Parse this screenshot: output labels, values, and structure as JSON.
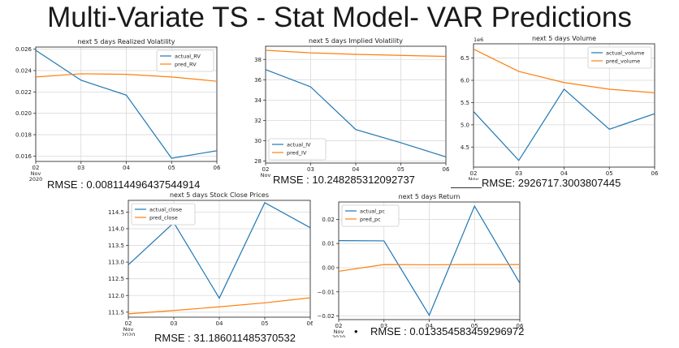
{
  "slide": {
    "title": "Multi-Variate TS - Stat Model- VAR Predictions"
  },
  "colors": {
    "actual": "#1f77b4",
    "pred": "#ff7f0e"
  },
  "rmse": {
    "rv": "RMSE : 0.008114496437544914",
    "iv": "RMSE : 10.248285312092737",
    "volume": "RMSE: 2926717.3003807445",
    "close": "RMSE : 31.186011485370532",
    "return_bullet": "•",
    "return": "RMSE : 0.013354583459296972"
  },
  "chart_data": [
    {
      "id": "rv",
      "type": "line",
      "title": "next 5 days Realized Volatility",
      "x": [
        "02",
        "03",
        "04",
        "05",
        "06"
      ],
      "x_sub": [
        "Nov",
        "2020"
      ],
      "ylim": [
        0.0155,
        0.0262
      ],
      "yticks": [
        0.016,
        0.018,
        0.02,
        0.022,
        0.024,
        0.026
      ],
      "ytick_labels": [
        "0.016",
        "0.018",
        "0.020",
        "0.022",
        "0.024",
        "0.026"
      ],
      "legend_loc": "top-right",
      "grid": true,
      "series": [
        {
          "name": "actual_RV",
          "color": "#1f77b4",
          "values": [
            0.0259,
            0.0231,
            0.0217,
            0.0158,
            0.0165
          ]
        },
        {
          "name": "pred_RV",
          "color": "#ff7f0e",
          "values": [
            0.0234,
            0.0237,
            0.02365,
            0.0234,
            0.023
          ]
        }
      ]
    },
    {
      "id": "iv",
      "type": "line",
      "title": "next 5 days Implied Volatility",
      "x": [
        "02",
        "03",
        "04",
        "05",
        "06"
      ],
      "x_sub": [
        "Nov",
        "2020"
      ],
      "ylim": [
        27.8,
        39.3
      ],
      "yticks": [
        28,
        30,
        32,
        34,
        36,
        38
      ],
      "ytick_labels": [
        "28",
        "30",
        "32",
        "34",
        "36",
        "38"
      ],
      "legend_loc": "bottom-left",
      "grid": true,
      "series": [
        {
          "name": "actual_IV",
          "color": "#1f77b4",
          "values": [
            37.0,
            35.3,
            31.1,
            29.8,
            28.4
          ]
        },
        {
          "name": "pred_IV",
          "color": "#ff7f0e",
          "values": [
            38.9,
            38.65,
            38.5,
            38.4,
            38.3
          ]
        }
      ]
    },
    {
      "id": "volume",
      "type": "line",
      "title": "next 5 days Volume",
      "x": [
        "02",
        "03",
        "04",
        "05",
        "06"
      ],
      "x_sub": [
        "Nov",
        "2020"
      ],
      "ylim": [
        4.05,
        6.82
      ],
      "yticks": [
        4.5,
        5.0,
        5.5,
        6.0,
        6.5
      ],
      "ytick_labels": [
        "4.5",
        "5.0",
        "5.5",
        "6.0",
        "6.5"
      ],
      "offset_label": "1e6",
      "legend_loc": "top-right",
      "grid": true,
      "series": [
        {
          "name": "actual_volume",
          "color": "#1f77b4",
          "values": [
            5.3,
            4.2,
            5.8,
            4.9,
            5.25
          ]
        },
        {
          "name": "pred_volume",
          "color": "#ff7f0e",
          "values": [
            6.7,
            6.2,
            5.95,
            5.8,
            5.72
          ]
        }
      ]
    },
    {
      "id": "close",
      "type": "line",
      "title": "next 5 days Stock Close Prices",
      "x": [
        "02",
        "03",
        "04",
        "05",
        "06"
      ],
      "x_sub": [
        "Nov",
        "2020"
      ],
      "ylim": [
        111.35,
        114.85
      ],
      "yticks": [
        111.5,
        112.0,
        112.5,
        113.0,
        113.5,
        114.0,
        114.5
      ],
      "ytick_labels": [
        "111.5",
        "112.0",
        "112.5",
        "113.0",
        "113.5",
        "114.0",
        "114.5"
      ],
      "legend_loc": "top-left",
      "grid": true,
      "series": [
        {
          "name": "actual_close",
          "color": "#1f77b4",
          "values": [
            112.92,
            114.18,
            111.92,
            114.78,
            114.03
          ]
        },
        {
          "name": "pred_close",
          "color": "#ff7f0e",
          "values": [
            111.45,
            111.55,
            111.66,
            111.78,
            111.93
          ]
        }
      ]
    },
    {
      "id": "return",
      "type": "line",
      "title": "next 5 days Return",
      "x": [
        "02",
        "03",
        "04",
        "05",
        "06"
      ],
      "x_sub": [
        "Nov",
        "2020"
      ],
      "ylim": [
        -0.0215,
        0.0272
      ],
      "yticks": [
        -0.02,
        -0.01,
        0.0,
        0.01,
        0.02
      ],
      "ytick_labels": [
        "−0.02",
        "−0.01",
        "0.00",
        "0.01",
        "0.02"
      ],
      "legend_loc": "top-left",
      "grid": true,
      "series": [
        {
          "name": "actual_pc",
          "color": "#1f77b4",
          "values": [
            0.0112,
            0.0111,
            -0.0197,
            0.0255,
            -0.0064
          ]
        },
        {
          "name": "pred_pc",
          "color": "#ff7f0e",
          "values": [
            -0.0015,
            0.0013,
            0.0012,
            0.0013,
            0.0013
          ]
        }
      ]
    }
  ]
}
